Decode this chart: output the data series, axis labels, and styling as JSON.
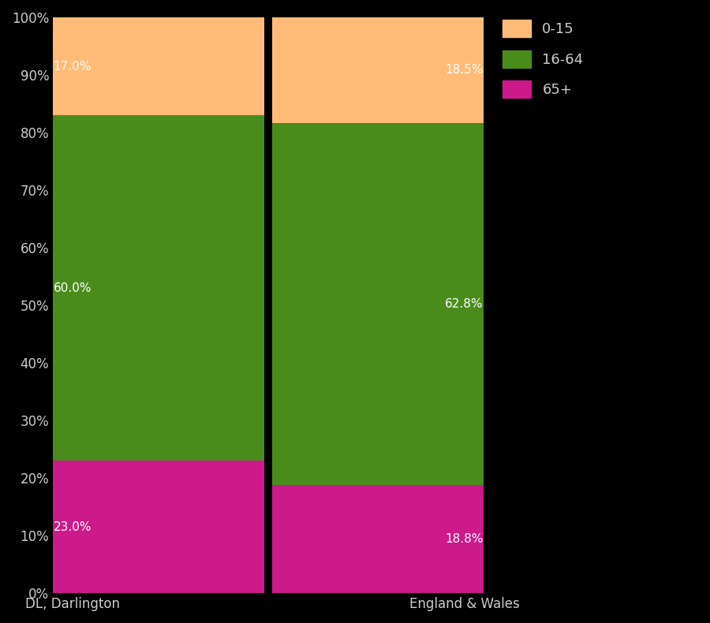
{
  "categories": [
    "DL, Darlington",
    "England & Wales"
  ],
  "segments": {
    "65+": [
      23.0,
      18.8
    ],
    "16-64": [
      60.0,
      62.8
    ],
    "0-15": [
      17.0,
      18.5
    ]
  },
  "colors": {
    "65+": "#CC1A8A",
    "16-64": "#4A8C1C",
    "0-15": "#FFBB77"
  },
  "segment_order": [
    "65+",
    "16-64",
    "0-15"
  ],
  "legend_labels": [
    "0-15",
    "16-64",
    "65+"
  ],
  "legend_colors": [
    "#FFBB77",
    "#4A8C1C",
    "#CC1A8A"
  ],
  "background_color": "#000000",
  "text_color": "#CCCCCC",
  "divider_color": "#000000",
  "ylim": [
    0,
    100
  ],
  "label_fontsize": 11,
  "tick_fontsize": 12,
  "legend_fontsize": 13,
  "bar_width": 0.98,
  "xlim_left": -0.05,
  "xlim_right": 1.05
}
